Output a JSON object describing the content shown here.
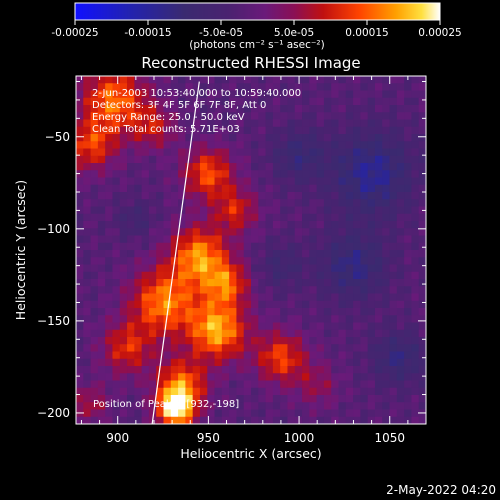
{
  "chart_data": {
    "type": "heatmap",
    "title": "Reconstructed RHESSI Image",
    "xlabel": "Heliocentric X (arcsec)",
    "ylabel": "Heliocentric Y (arcsec)",
    "xlim": [
      877,
      1070
    ],
    "ylim": [
      -206,
      -17
    ],
    "x_ticks": [
      900,
      950,
      1000,
      1050
    ],
    "y_ticks": [
      -50,
      -100,
      -150,
      -200
    ],
    "colorbar": {
      "range": [
        -0.00025,
        0.00025
      ],
      "ticks": [
        -0.00025,
        -0.00015,
        -5e-05,
        5e-05,
        0.00015,
        0.00025
      ],
      "tick_labels": [
        "-0.00025",
        "-0.00015",
        "-5.0e-05",
        "5.0e-05",
        "0.00015",
        "0.00025"
      ],
      "unit_label": "(photons cm⁻² s⁻¹ asec⁻²)"
    },
    "annotations": [
      "2-Jun-2003 10:53:40.000 to 10:59:40.000",
      "Detectors: 3F 4F 5F 6F 7F 8F, Att 0",
      "Energy Range: 25.0 - 50.0 keV",
      "Clean     Total counts: 5.71E+03"
    ],
    "position_label": "Position of Peak = [932,-198]",
    "peak": [
      932,
      -198
    ],
    "limb_line": [
      [
        919,
        -206
      ],
      [
        945,
        -20
      ]
    ],
    "intensity_blobs": [
      {
        "x": 898,
        "y": -30,
        "r": 18,
        "amp": 0.00018
      },
      {
        "x": 885,
        "y": -55,
        "r": 14,
        "amp": 0.00014
      },
      {
        "x": 920,
        "y": -45,
        "r": 12,
        "amp": 0.0001
      },
      {
        "x": 950,
        "y": -70,
        "r": 14,
        "amp": 0.00016
      },
      {
        "x": 965,
        "y": -90,
        "r": 12,
        "amp": 0.00012
      },
      {
        "x": 945,
        "y": -115,
        "r": 16,
        "amp": 0.0002
      },
      {
        "x": 960,
        "y": -130,
        "r": 12,
        "amp": 0.00015
      },
      {
        "x": 925,
        "y": -140,
        "r": 18,
        "amp": 0.00019
      },
      {
        "x": 955,
        "y": -155,
        "r": 16,
        "amp": 0.00022
      },
      {
        "x": 990,
        "y": -170,
        "r": 14,
        "amp": 0.00015
      },
      {
        "x": 905,
        "y": -165,
        "r": 14,
        "amp": 0.00013
      },
      {
        "x": 935,
        "y": -185,
        "r": 14,
        "amp": 0.00018
      },
      {
        "x": 932,
        "y": -198,
        "r": 10,
        "amp": 0.00025
      },
      {
        "x": 885,
        "y": -195,
        "r": 10,
        "amp": 9e-05
      },
      {
        "x": 1010,
        "y": -185,
        "r": 12,
        "amp": 7e-05
      },
      {
        "x": 1040,
        "y": -70,
        "r": 22,
        "amp": -0.00012
      },
      {
        "x": 1030,
        "y": -120,
        "r": 18,
        "amp": -0.0001
      },
      {
        "x": 1000,
        "y": -60,
        "r": 14,
        "amp": -8e-05
      },
      {
        "x": 1055,
        "y": -170,
        "r": 14,
        "amp": -9e-05
      },
      {
        "x": 990,
        "y": -120,
        "r": 12,
        "amp": -6e-05
      },
      {
        "x": 910,
        "y": -95,
        "r": 10,
        "amp": -5e-05
      }
    ]
  },
  "footer": {
    "timestamp": "2-May-2022 04:20"
  }
}
